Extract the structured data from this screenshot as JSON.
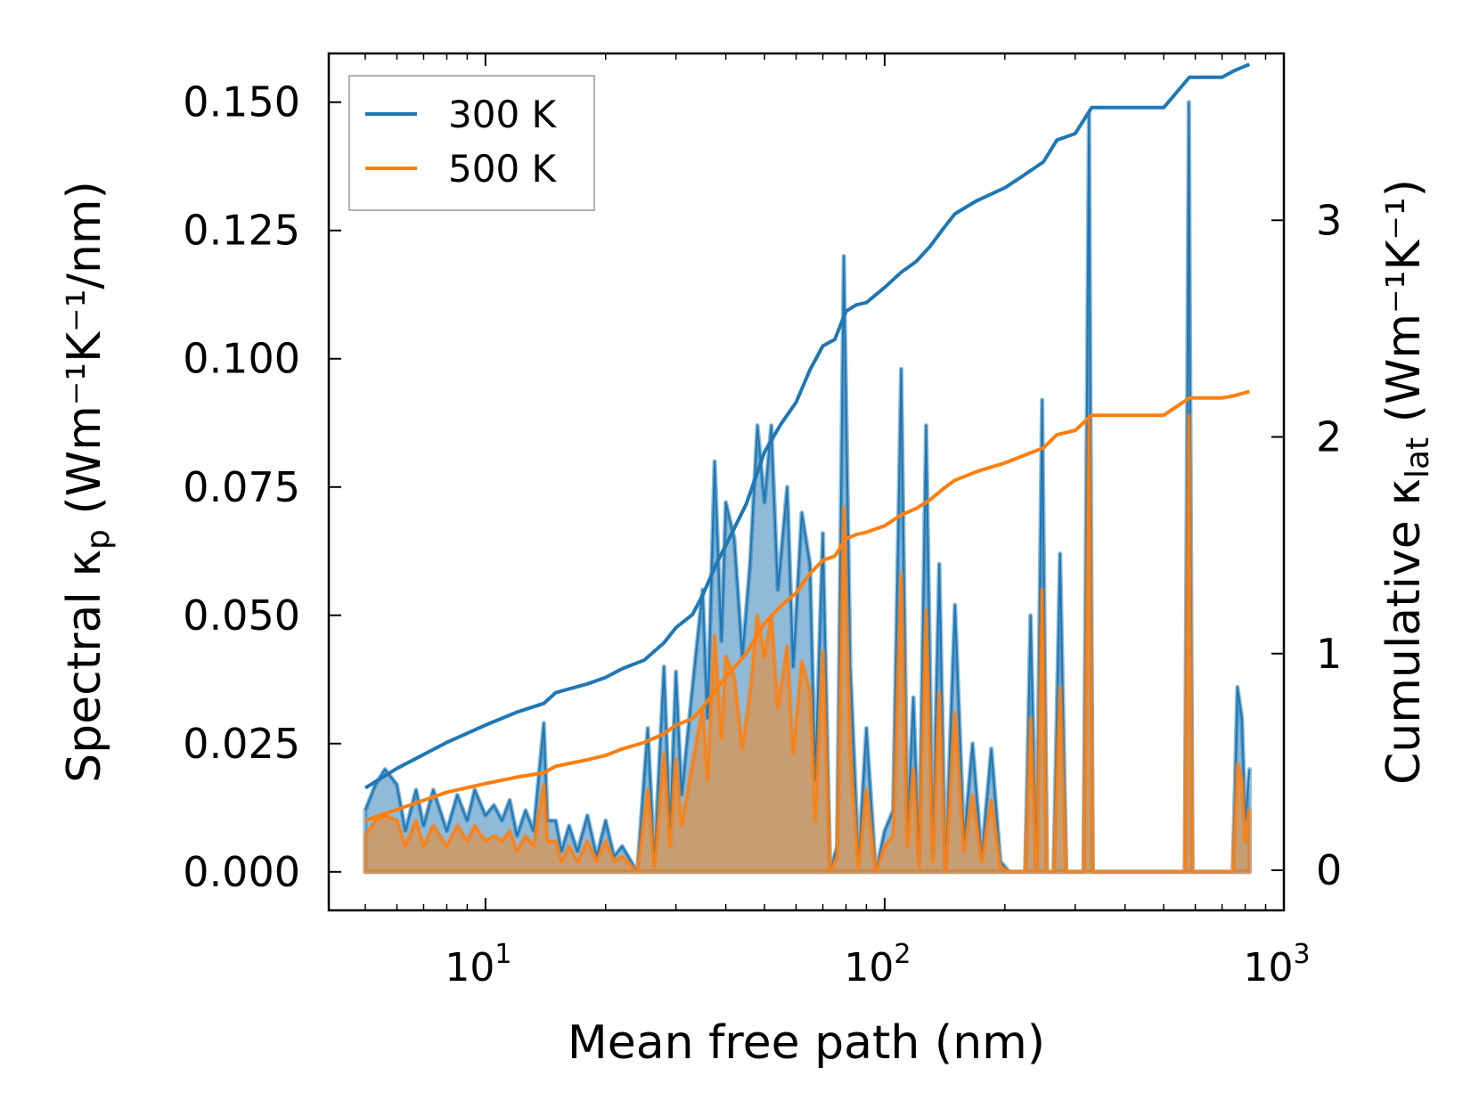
{
  "chart_data": {
    "type": "line",
    "title": "",
    "xlabel": "Mean free path (nm)",
    "ylabel_left": "Spectral κ",
    "ylabel_left_sub": "p",
    "ylabel_left_units": "(Wm⁻¹K⁻¹/nm)",
    "ylabel_right": "Cumulative κ",
    "ylabel_right_sub": "lat",
    "ylabel_right_units": "(Wm⁻¹K⁻¹)",
    "xscale": "log",
    "xlim": [
      4.05,
      1000
    ],
    "ylim_left": [
      -0.0075,
      0.1595
    ],
    "ylim_right": [
      -0.185,
      3.77
    ],
    "x_ticks": [
      {
        "value": 10,
        "base": "10",
        "exp": "1"
      },
      {
        "value": 100,
        "base": "10",
        "exp": "2"
      },
      {
        "value": 1000,
        "base": "10",
        "exp": "3"
      }
    ],
    "y_left_ticks": [
      {
        "value": 0.0,
        "label": "0.000"
      },
      {
        "value": 0.025,
        "label": "0.025"
      },
      {
        "value": 0.05,
        "label": "0.050"
      },
      {
        "value": 0.075,
        "label": "0.075"
      },
      {
        "value": 0.1,
        "label": "0.100"
      },
      {
        "value": 0.125,
        "label": "0.125"
      },
      {
        "value": 0.15,
        "label": "0.150"
      }
    ],
    "y_right_ticks": [
      {
        "value": 0,
        "label": "0"
      },
      {
        "value": 1,
        "label": "1"
      },
      {
        "value": 2,
        "label": "2"
      },
      {
        "value": 3,
        "label": "3"
      }
    ],
    "legend": {
      "position": "top-left",
      "entries": [
        "300 K",
        "500 K"
      ]
    },
    "series": [
      {
        "name": "300 K",
        "color": "#1f77b4",
        "axis": "right",
        "kind": "cumulative",
        "x": [
          5,
          6,
          8,
          10,
          12,
          14,
          15,
          18,
          20,
          22,
          25,
          28,
          30,
          33,
          35,
          38,
          40,
          45,
          50,
          55,
          60,
          65,
          70,
          75,
          80,
          85,
          90,
          100,
          110,
          120,
          130,
          140,
          150,
          170,
          200,
          220,
          250,
          270,
          300,
          330,
          400,
          500,
          580,
          700,
          750,
          820
        ],
        "values": [
          0.38,
          0.47,
          0.59,
          0.67,
          0.73,
          0.77,
          0.82,
          0.86,
          0.89,
          0.93,
          0.97,
          1.05,
          1.12,
          1.18,
          1.27,
          1.42,
          1.5,
          1.69,
          1.93,
          2.06,
          2.16,
          2.31,
          2.42,
          2.45,
          2.58,
          2.61,
          2.62,
          2.69,
          2.76,
          2.81,
          2.88,
          2.96,
          3.03,
          3.09,
          3.15,
          3.2,
          3.27,
          3.37,
          3.4,
          3.52,
          3.52,
          3.52,
          3.66,
          3.66,
          3.69,
          3.72
        ]
      },
      {
        "name": "500 K",
        "color": "#ff7f0e",
        "axis": "right",
        "kind": "cumulative",
        "x": [
          5,
          6,
          8,
          10,
          12,
          14,
          15,
          18,
          20,
          22,
          25,
          28,
          30,
          33,
          35,
          38,
          40,
          45,
          50,
          55,
          60,
          65,
          70,
          75,
          80,
          85,
          90,
          100,
          110,
          120,
          130,
          140,
          150,
          170,
          200,
          220,
          250,
          270,
          300,
          330,
          400,
          500,
          580,
          700,
          750,
          820
        ],
        "values": [
          0.23,
          0.28,
          0.36,
          0.4,
          0.43,
          0.45,
          0.48,
          0.51,
          0.53,
          0.56,
          0.59,
          0.63,
          0.67,
          0.7,
          0.75,
          0.84,
          0.89,
          1.0,
          1.14,
          1.22,
          1.28,
          1.37,
          1.43,
          1.45,
          1.53,
          1.55,
          1.56,
          1.59,
          1.64,
          1.67,
          1.71,
          1.76,
          1.8,
          1.84,
          1.88,
          1.91,
          1.95,
          2.01,
          2.03,
          2.1,
          2.1,
          2.1,
          2.18,
          2.18,
          2.19,
          2.21
        ]
      },
      {
        "name": "300 K",
        "color": "#1f77b4",
        "axis": "left",
        "kind": "spectral",
        "x": [
          5.0,
          5.3,
          5.6,
          6.0,
          6.3,
          6.7,
          7.0,
          7.4,
          8.0,
          8.5,
          9.0,
          9.4,
          10.0,
          10.5,
          11.0,
          11.5,
          12.0,
          12.6,
          13.2,
          14.0,
          14.3,
          15.0,
          15.5,
          16.2,
          17.0,
          18.0,
          19.0,
          20.0,
          21.0,
          22.0,
          24.0,
          25.5,
          26.5,
          28.0,
          29.0,
          30.0,
          31.0,
          33.0,
          35.0,
          36.0,
          37.5,
          39.0,
          40.0,
          42.0,
          44.0,
          46.0,
          48.0,
          50.0,
          52.0,
          54.0,
          57.0,
          59.0,
          62.0,
          65.0,
          67.0,
          70.0,
          73.0,
          76.0,
          79.0,
          82.0,
          86.0,
          90.0,
          95.0,
          100.0,
          105.0,
          110.0,
          114.0,
          118.0,
          122.0,
          127.0,
          132.0,
          137.0,
          142.0,
          150.0,
          158.0,
          166.0,
          175.0,
          185.0,
          195.0,
          205.0,
          215.0,
          225.0,
          232.0,
          240.0,
          248.0,
          255.0,
          265.0,
          275.0,
          285.0,
          300.0,
          315.0,
          325.0,
          332.0,
          345.0,
          400.0,
          500.0,
          565.0,
          578.0,
          590.0,
          700.0,
          745.0,
          765.0,
          785.0,
          800.0,
          820.0
        ],
        "values": [
          0.012,
          0.017,
          0.02,
          0.017,
          0.008,
          0.016,
          0.009,
          0.016,
          0.008,
          0.015,
          0.01,
          0.016,
          0.011,
          0.013,
          0.01,
          0.014,
          0.007,
          0.012,
          0.008,
          0.029,
          0.01,
          0.01,
          0.004,
          0.009,
          0.004,
          0.011,
          0.003,
          0.01,
          0.003,
          0.005,
          0.0,
          0.028,
          0.002,
          0.04,
          0.008,
          0.039,
          0.015,
          0.036,
          0.055,
          0.03,
          0.08,
          0.045,
          0.072,
          0.065,
          0.042,
          0.06,
          0.087,
          0.072,
          0.087,
          0.055,
          0.075,
          0.04,
          0.07,
          0.06,
          0.018,
          0.066,
          0.0,
          0.005,
          0.12,
          0.04,
          0.002,
          0.028,
          0.0,
          0.008,
          0.012,
          0.098,
          0.008,
          0.034,
          0.002,
          0.087,
          0.004,
          0.06,
          0.0,
          0.052,
          0.006,
          0.025,
          0.003,
          0.024,
          0.002,
          0.0,
          0.0,
          0.0,
          0.05,
          0.0,
          0.092,
          0.0,
          0.0,
          0.062,
          0.0,
          0.0,
          0.0,
          0.148,
          0.0,
          0.0,
          0.0,
          0.0,
          0.0,
          0.15,
          0.0,
          0.0,
          0.0,
          0.036,
          0.03,
          0.01,
          0.02
        ]
      },
      {
        "name": "500 K",
        "color": "#ff7f0e",
        "axis": "left",
        "kind": "spectral",
        "x": [
          5.0,
          5.3,
          5.6,
          6.0,
          6.3,
          6.7,
          7.0,
          7.4,
          8.0,
          8.5,
          9.0,
          9.4,
          10.0,
          10.5,
          11.0,
          11.5,
          12.0,
          12.6,
          13.2,
          14.0,
          14.3,
          15.0,
          15.5,
          16.2,
          17.0,
          18.0,
          19.0,
          20.0,
          21.0,
          22.0,
          24.0,
          25.5,
          26.5,
          28.0,
          29.0,
          30.0,
          31.0,
          33.0,
          35.0,
          36.0,
          37.5,
          39.0,
          40.0,
          42.0,
          44.0,
          46.0,
          48.0,
          50.0,
          52.0,
          54.0,
          57.0,
          59.0,
          62.0,
          65.0,
          67.0,
          70.0,
          73.0,
          76.0,
          79.0,
          82.0,
          86.0,
          90.0,
          95.0,
          100.0,
          105.0,
          110.0,
          114.0,
          118.0,
          122.0,
          127.0,
          132.0,
          137.0,
          142.0,
          150.0,
          158.0,
          166.0,
          175.0,
          185.0,
          195.0,
          205.0,
          215.0,
          225.0,
          232.0,
          240.0,
          248.0,
          255.0,
          265.0,
          275.0,
          285.0,
          300.0,
          315.0,
          325.0,
          332.0,
          345.0,
          400.0,
          500.0,
          565.0,
          578.0,
          590.0,
          700.0,
          745.0,
          765.0,
          785.0,
          800.0,
          820.0
        ],
        "values": [
          0.007,
          0.01,
          0.011,
          0.01,
          0.005,
          0.01,
          0.005,
          0.009,
          0.005,
          0.009,
          0.006,
          0.009,
          0.006,
          0.007,
          0.006,
          0.008,
          0.004,
          0.007,
          0.005,
          0.017,
          0.006,
          0.006,
          0.002,
          0.005,
          0.002,
          0.006,
          0.002,
          0.006,
          0.002,
          0.003,
          0.0,
          0.016,
          0.001,
          0.023,
          0.005,
          0.022,
          0.009,
          0.021,
          0.032,
          0.018,
          0.046,
          0.026,
          0.042,
          0.038,
          0.024,
          0.035,
          0.05,
          0.042,
          0.05,
          0.032,
          0.044,
          0.023,
          0.041,
          0.035,
          0.01,
          0.043,
          0.0,
          0.003,
          0.071,
          0.023,
          0.001,
          0.016,
          0.0,
          0.005,
          0.007,
          0.058,
          0.005,
          0.02,
          0.001,
          0.051,
          0.002,
          0.035,
          0.0,
          0.031,
          0.004,
          0.015,
          0.002,
          0.014,
          0.001,
          0.0,
          0.0,
          0.0,
          0.03,
          0.0,
          0.055,
          0.0,
          0.0,
          0.036,
          0.0,
          0.0,
          0.0,
          0.088,
          0.0,
          0.0,
          0.0,
          0.0,
          0.0,
          0.089,
          0.0,
          0.0,
          0.0,
          0.021,
          0.018,
          0.006,
          0.012
        ]
      }
    ]
  }
}
